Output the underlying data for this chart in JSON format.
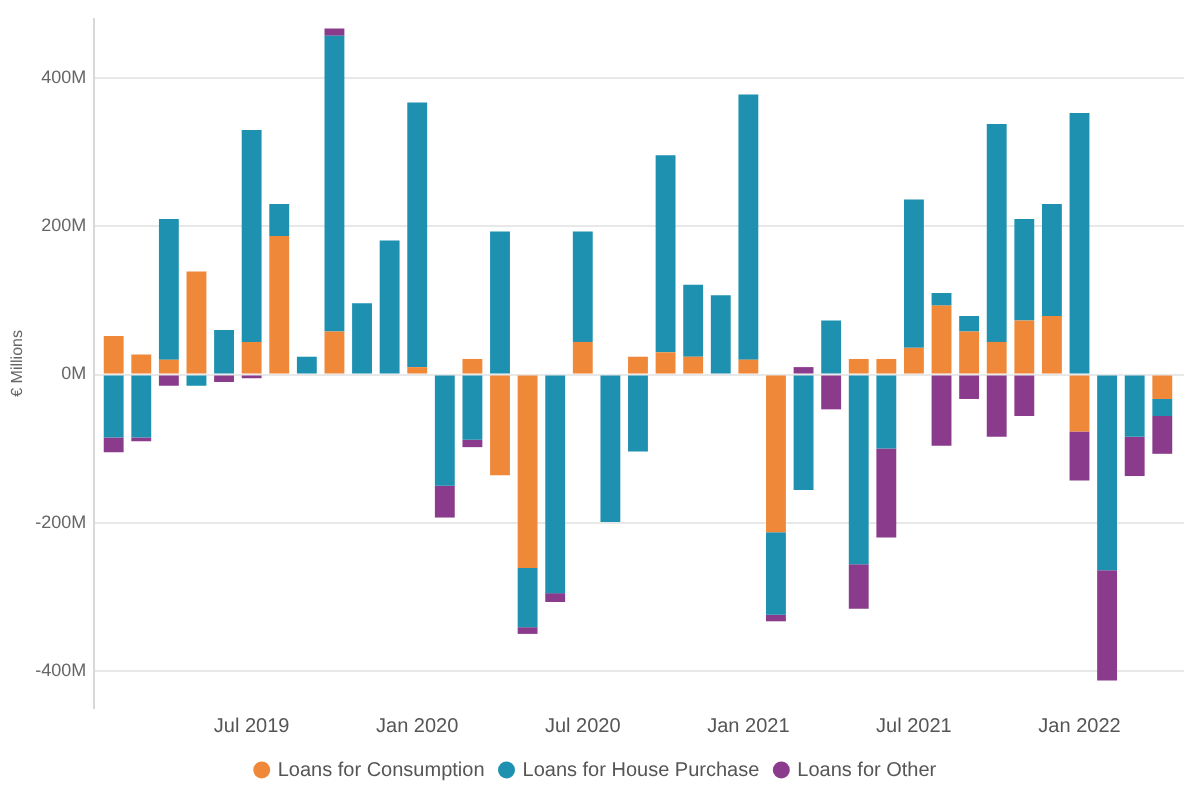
{
  "chart_data": {
    "type": "bar",
    "stacked": true,
    "ylabel": "€ Millions",
    "x": [
      "2019-02",
      "2019-03",
      "2019-04",
      "2019-05",
      "2019-06",
      "2019-07",
      "2019-08",
      "2019-09",
      "2019-10",
      "2019-11",
      "2019-12",
      "2020-01",
      "2020-02",
      "2020-03",
      "2020-04",
      "2020-05",
      "2020-06",
      "2020-07",
      "2020-08",
      "2020-09",
      "2020-10",
      "2020-11",
      "2020-12",
      "2021-01",
      "2021-02",
      "2021-03",
      "2021-04",
      "2021-05",
      "2021-06",
      "2021-07",
      "2021-08",
      "2021-09",
      "2021-10",
      "2021-11",
      "2021-12",
      "2022-01",
      "2022-02",
      "2022-03",
      "2022-04"
    ],
    "xlim": [
      "2019-01-10",
      "2022-04-25"
    ],
    "xticks": [
      {
        "value": "2019-07",
        "label": "Jul 2019"
      },
      {
        "value": "2020-01",
        "label": "Jan 2020"
      },
      {
        "value": "2020-07",
        "label": "Jul 2020"
      },
      {
        "value": "2021-01",
        "label": "Jan 2021"
      },
      {
        "value": "2021-07",
        "label": "Jul 2021"
      },
      {
        "value": "2022-01",
        "label": "Jan 2022"
      }
    ],
    "ylim": [
      -450,
      480
    ],
    "yticks": [
      {
        "value": -400,
        "label": "-400M"
      },
      {
        "value": -200,
        "label": "-200M"
      },
      {
        "value": 0,
        "label": "0M"
      },
      {
        "value": 200,
        "label": "200M"
      },
      {
        "value": 400,
        "label": "400M"
      }
    ],
    "grid": "y",
    "legend": "bottom",
    "marker": "circle",
    "series": [
      {
        "name": "Loans for Consumption",
        "color": "#f0883a",
        "values": [
          52,
          27,
          20,
          139,
          null,
          44,
          187,
          null,
          58,
          null,
          null,
          10,
          null,
          21,
          -136,
          -261,
          null,
          44,
          null,
          24,
          30,
          24,
          null,
          20,
          -213,
          null,
          null,
          21,
          21,
          36,
          93,
          58,
          44,
          73,
          79,
          -77,
          null,
          null,
          -33
        ]
      },
      {
        "name": "Loans for House Purchase",
        "color": "#1e90b0",
        "values": [
          -85,
          -85,
          190,
          -15,
          60,
          286,
          43,
          24,
          399,
          96,
          181,
          357,
          -150,
          -88,
          193,
          -80,
          -295,
          149,
          -199,
          -104,
          266,
          97,
          107,
          358,
          -111,
          -156,
          73,
          -256,
          -100,
          200,
          17,
          21,
          294,
          137,
          151,
          353,
          -264,
          -84,
          -23
        ]
      },
      {
        "name": "Loans for Other",
        "color": "#8a3b8c",
        "values": [
          -20,
          -5,
          -15,
          null,
          -10,
          -5,
          null,
          null,
          10,
          null,
          null,
          null,
          -43,
          -10,
          null,
          -9,
          -12,
          null,
          null,
          null,
          null,
          null,
          null,
          null,
          -9,
          10,
          -47,
          -60,
          -120,
          null,
          -96,
          -33,
          -84,
          -56,
          null,
          -66,
          -149,
          -53,
          -51
        ]
      }
    ]
  }
}
